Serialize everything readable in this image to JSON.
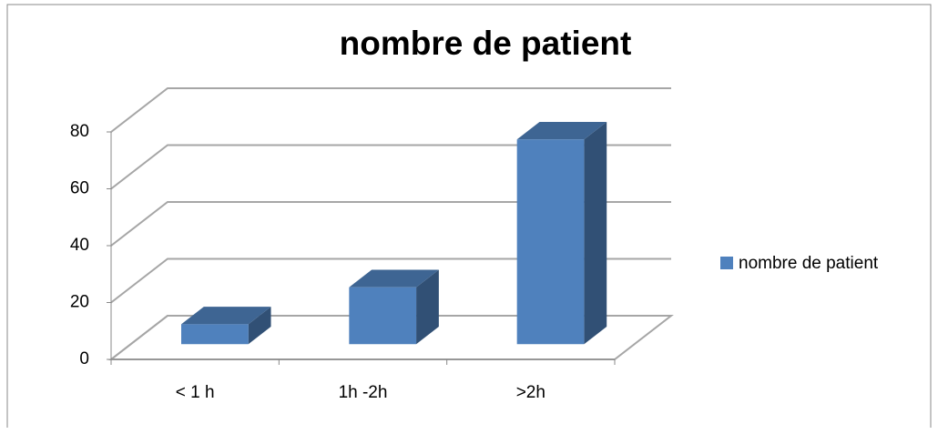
{
  "chart_data": {
    "type": "bar3d",
    "title": "nombre de patient",
    "categories": [
      "< 1 h",
      "1h -2h",
      ">2h"
    ],
    "series": [
      {
        "name": "nombre de patient",
        "color": "#4f81bd",
        "values": [
          7,
          20,
          72
        ]
      }
    ],
    "ylim": [
      0,
      80
    ],
    "yticks": [
      0,
      20,
      40,
      60,
      80
    ],
    "grid": true,
    "legend": "right"
  }
}
